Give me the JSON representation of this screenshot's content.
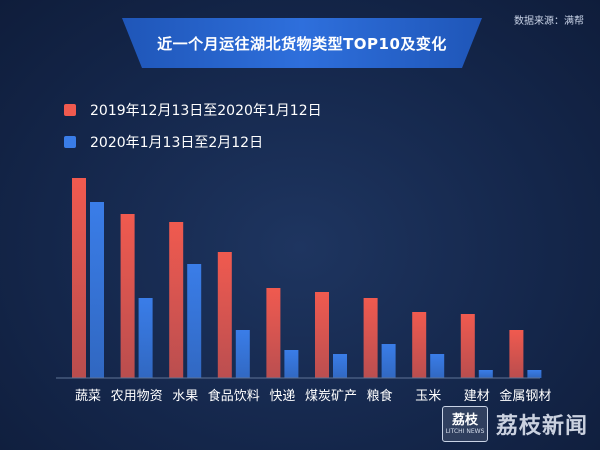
{
  "source": "数据来源：满帮",
  "title": "近一个月运往湖北货物类型TOP10及变化",
  "colors": {
    "series1": "#f05a4f",
    "series2": "#3a7de8"
  },
  "watermark": {
    "logo_cn": "荔枝",
    "logo_en": "LITCHI NEWS",
    "text": "荔枝新闻"
  },
  "chart_data": {
    "type": "bar",
    "title": "近一个月运往湖北货物类型TOP10及变化",
    "xlabel": "",
    "ylabel": "",
    "ylim": [
      0,
      100
    ],
    "grid": false,
    "legend_position": "top-left",
    "categories": [
      "蔬菜",
      "农用物资",
      "水果",
      "食品饮料",
      "快递",
      "煤炭矿产",
      "粮食",
      "玉米",
      "建材",
      "金属钢材"
    ],
    "series": [
      {
        "name": "2019年12月13日至2020年1月12日",
        "values": [
          100,
          82,
          78,
          63,
          45,
          43,
          40,
          33,
          32,
          24
        ]
      },
      {
        "name": "2020年1月13日至2月12日",
        "values": [
          88,
          40,
          57,
          24,
          14,
          12,
          17,
          12,
          4,
          4
        ]
      }
    ]
  }
}
